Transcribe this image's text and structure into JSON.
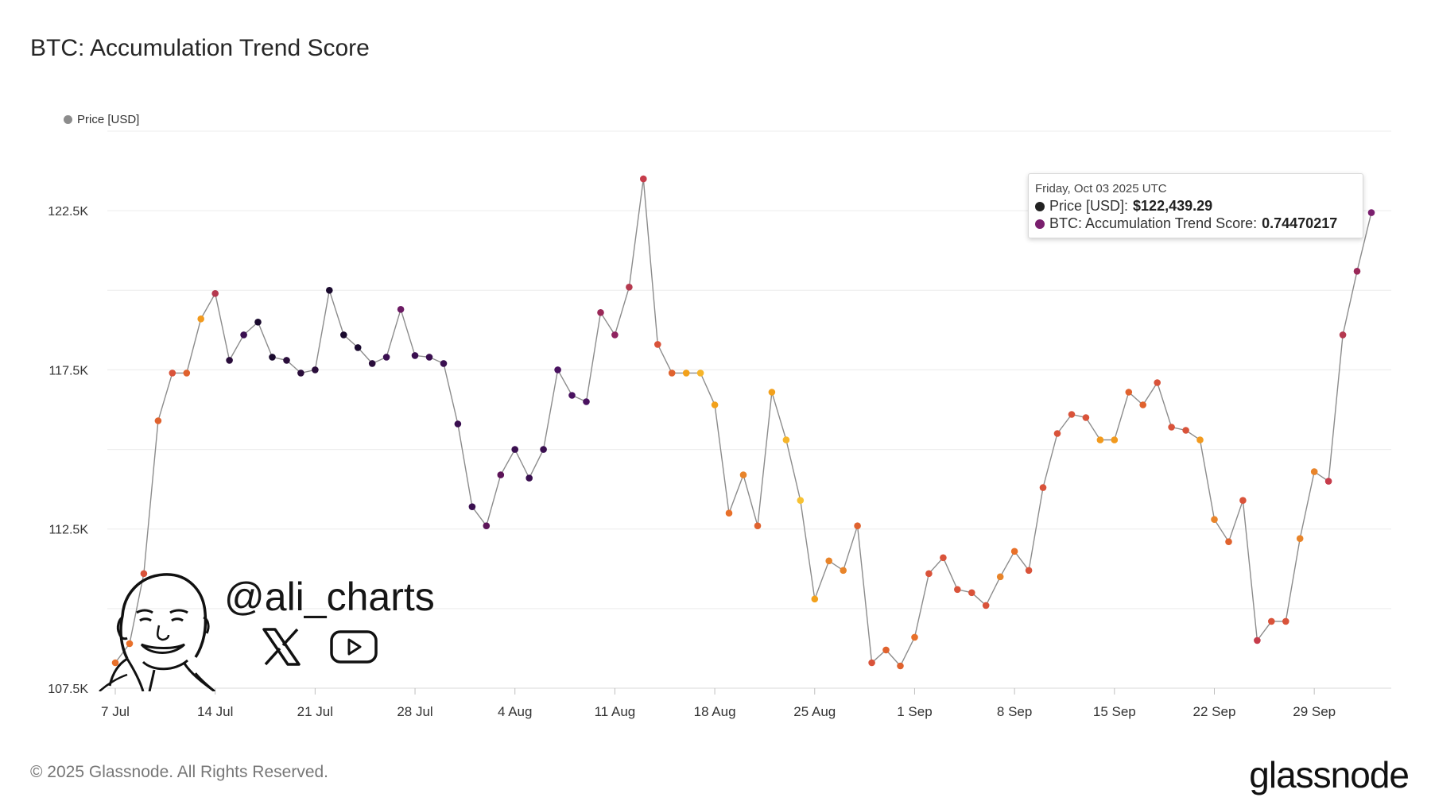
{
  "page": {
    "title": "BTC: Accumulation Trend Score"
  },
  "legend": {
    "label": "Price [USD]",
    "color": "#8c8c8c"
  },
  "tooltip": {
    "date": "Friday, Oct 03 2025 UTC",
    "price_label": "Price [USD]: ",
    "price_value": "$122,439.29",
    "score_label": "BTC: Accumulation Trend Score: ",
    "score_value": "0.74470217",
    "price_color": "#222222",
    "score_color": "#7a1f6e"
  },
  "watermark": {
    "handle": "@ali_charts",
    "icons": [
      "avatar-sketch-icon",
      "x-logo-icon",
      "youtube-logo-icon"
    ]
  },
  "footer": {
    "copyright": "© 2025 Glassnode. All Rights Reserved.",
    "brand": "glassnode"
  },
  "chart_data": {
    "type": "line",
    "title": "BTC: Accumulation Trend Score",
    "xlabel": "",
    "ylabel": "",
    "x_tick_labels": [
      "7 Jul",
      "14 Jul",
      "21 Jul",
      "28 Jul",
      "4 Aug",
      "11 Aug",
      "18 Aug",
      "25 Aug",
      "1 Sep",
      "8 Sep",
      "15 Sep",
      "22 Sep",
      "29 Sep"
    ],
    "y_tick_labels": [
      "107.5K",
      "112.5K",
      "117.5K",
      "122.5K"
    ],
    "y_tick_values": [
      107500,
      112500,
      117500,
      122500
    ],
    "ylim": [
      107500,
      125000
    ],
    "x_range": [
      "2025-07-07",
      "2025-10-03"
    ],
    "grid": true,
    "legend_position": "top-left",
    "series": [
      {
        "name": "Price [USD]",
        "color": "#8c8c8c",
        "x": [
          "2025-07-07",
          "2025-07-08",
          "2025-07-09",
          "2025-07-10",
          "2025-07-11",
          "2025-07-12",
          "2025-07-13",
          "2025-07-14",
          "2025-07-15",
          "2025-07-16",
          "2025-07-17",
          "2025-07-18",
          "2025-07-19",
          "2025-07-20",
          "2025-07-21",
          "2025-07-22",
          "2025-07-23",
          "2025-07-24",
          "2025-07-25",
          "2025-07-26",
          "2025-07-27",
          "2025-07-28",
          "2025-07-29",
          "2025-07-30",
          "2025-07-31",
          "2025-08-01",
          "2025-08-02",
          "2025-08-03",
          "2025-08-04",
          "2025-08-05",
          "2025-08-06",
          "2025-08-07",
          "2025-08-08",
          "2025-08-09",
          "2025-08-10",
          "2025-08-11",
          "2025-08-12",
          "2025-08-13",
          "2025-08-14",
          "2025-08-15",
          "2025-08-16",
          "2025-08-17",
          "2025-08-18",
          "2025-08-19",
          "2025-08-20",
          "2025-08-21",
          "2025-08-22",
          "2025-08-23",
          "2025-08-24",
          "2025-08-25",
          "2025-08-26",
          "2025-08-27",
          "2025-08-28",
          "2025-08-29",
          "2025-08-30",
          "2025-08-31",
          "2025-09-01",
          "2025-09-02",
          "2025-09-03",
          "2025-09-04",
          "2025-09-05",
          "2025-09-06",
          "2025-09-07",
          "2025-09-08",
          "2025-09-09",
          "2025-09-10",
          "2025-09-11",
          "2025-09-12",
          "2025-09-13",
          "2025-09-14",
          "2025-09-15",
          "2025-09-16",
          "2025-09-17",
          "2025-09-18",
          "2025-09-19",
          "2025-09-20",
          "2025-09-21",
          "2025-09-22",
          "2025-09-23",
          "2025-09-24",
          "2025-09-25",
          "2025-09-26",
          "2025-09-27",
          "2025-09-28",
          "2025-09-29",
          "2025-09-30",
          "2025-10-01",
          "2025-10-02",
          "2025-10-03"
        ],
        "values": [
          108300,
          108900,
          111100,
          115900,
          117400,
          117400,
          119100,
          119900,
          117800,
          118600,
          119000,
          117900,
          117800,
          117400,
          117500,
          120000,
          118600,
          118200,
          117700,
          117900,
          119400,
          117950,
          117900,
          117700,
          115800,
          113200,
          112600,
          114200,
          115000,
          114100,
          115000,
          117500,
          116700,
          116500,
          119300,
          118600,
          120100,
          123500,
          118300,
          117400,
          117400,
          117400,
          116400,
          113000,
          114200,
          112600,
          116800,
          115300,
          113400,
          110300,
          111500,
          111200,
          112600,
          108300,
          108700,
          108200,
          109100,
          111100,
          111600,
          110600,
          110500,
          110100,
          111000,
          111800,
          111200,
          113800,
          115500,
          116100,
          116000,
          115300,
          115300,
          116800,
          116400,
          117100,
          115700,
          115600,
          115300,
          112800,
          112100,
          113400,
          109000,
          109600,
          109600,
          112200,
          114300,
          114000,
          118600,
          120600,
          122439.29
        ],
        "score_colors": [
          "#e8702a",
          "#e8702a",
          "#d9533a",
          "#e0622e",
          "#d9533a",
          "#e0622e",
          "#f29a1e",
          "#b5394f",
          "#2a0d3b",
          "#3a0f50",
          "#1a0a2e",
          "#1a0a2e",
          "#2a0d3b",
          "#2a0d3b",
          "#2a0d3b",
          "#1a0a2e",
          "#1a0a2e",
          "#1a0a2e",
          "#2a0d3b",
          "#3a0f50",
          "#6b1a63",
          "#3a0f50",
          "#3a0f50",
          "#3a0f50",
          "#3a0f50",
          "#3a0f50",
          "#5c1458",
          "#5c1458",
          "#3a0f50",
          "#3a0f50",
          "#3a0f50",
          "#4a1260",
          "#4a1260",
          "#4a1260",
          "#9a2858",
          "#8f2460",
          "#b5394f",
          "#c63c4a",
          "#d9533a",
          "#e0622e",
          "#f2a11c",
          "#f6b52a",
          "#f2a11c",
          "#e8702a",
          "#e8842a",
          "#e0622e",
          "#f2a11c",
          "#f6b52a",
          "#f7c233",
          "#f2a11c",
          "#e8842a",
          "#e8842a",
          "#e0622e",
          "#d9533a",
          "#e0622e",
          "#e0622e",
          "#e8702a",
          "#d9533a",
          "#d9533a",
          "#d9533a",
          "#d9533a",
          "#d9533a",
          "#e8842a",
          "#e8702a",
          "#d9533a",
          "#d9533a",
          "#d9533a",
          "#d9533a",
          "#d9533a",
          "#f29a1e",
          "#f29a1e",
          "#e0622e",
          "#e0622e",
          "#d9533a",
          "#d9533a",
          "#d9533a",
          "#f29a1e",
          "#e8842a",
          "#e0622e",
          "#d9533a",
          "#c63c4a",
          "#d9533a",
          "#d9533a",
          "#e8842a",
          "#e8842a",
          "#c63c4a",
          "#b5394f",
          "#9a2858",
          "#7a1f6e"
        ]
      }
    ]
  }
}
